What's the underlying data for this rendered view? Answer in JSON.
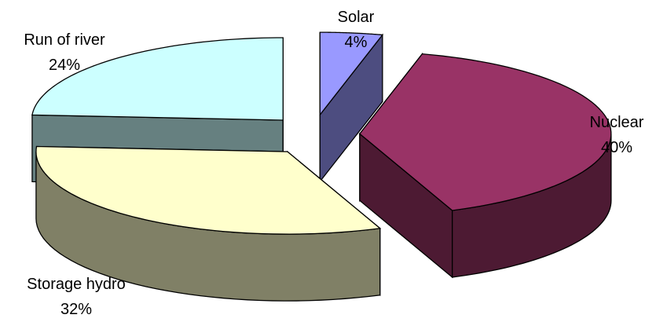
{
  "chart_data": {
    "type": "pie",
    "title": "",
    "slices": [
      {
        "label": "Solar",
        "value": 4,
        "percent_label": "4%",
        "color": "#9999ff"
      },
      {
        "label": "Nuclear",
        "value": 40,
        "percent_label": "40%",
        "color": "#993366"
      },
      {
        "label": "Storage hydro",
        "value": 32,
        "percent_label": "32%",
        "color": "#ffffcc"
      },
      {
        "label": "Run of river",
        "value": 24,
        "percent_label": "24%",
        "color": "#ccffff"
      }
    ],
    "exploded": true,
    "three_d": true,
    "legend": "none"
  }
}
